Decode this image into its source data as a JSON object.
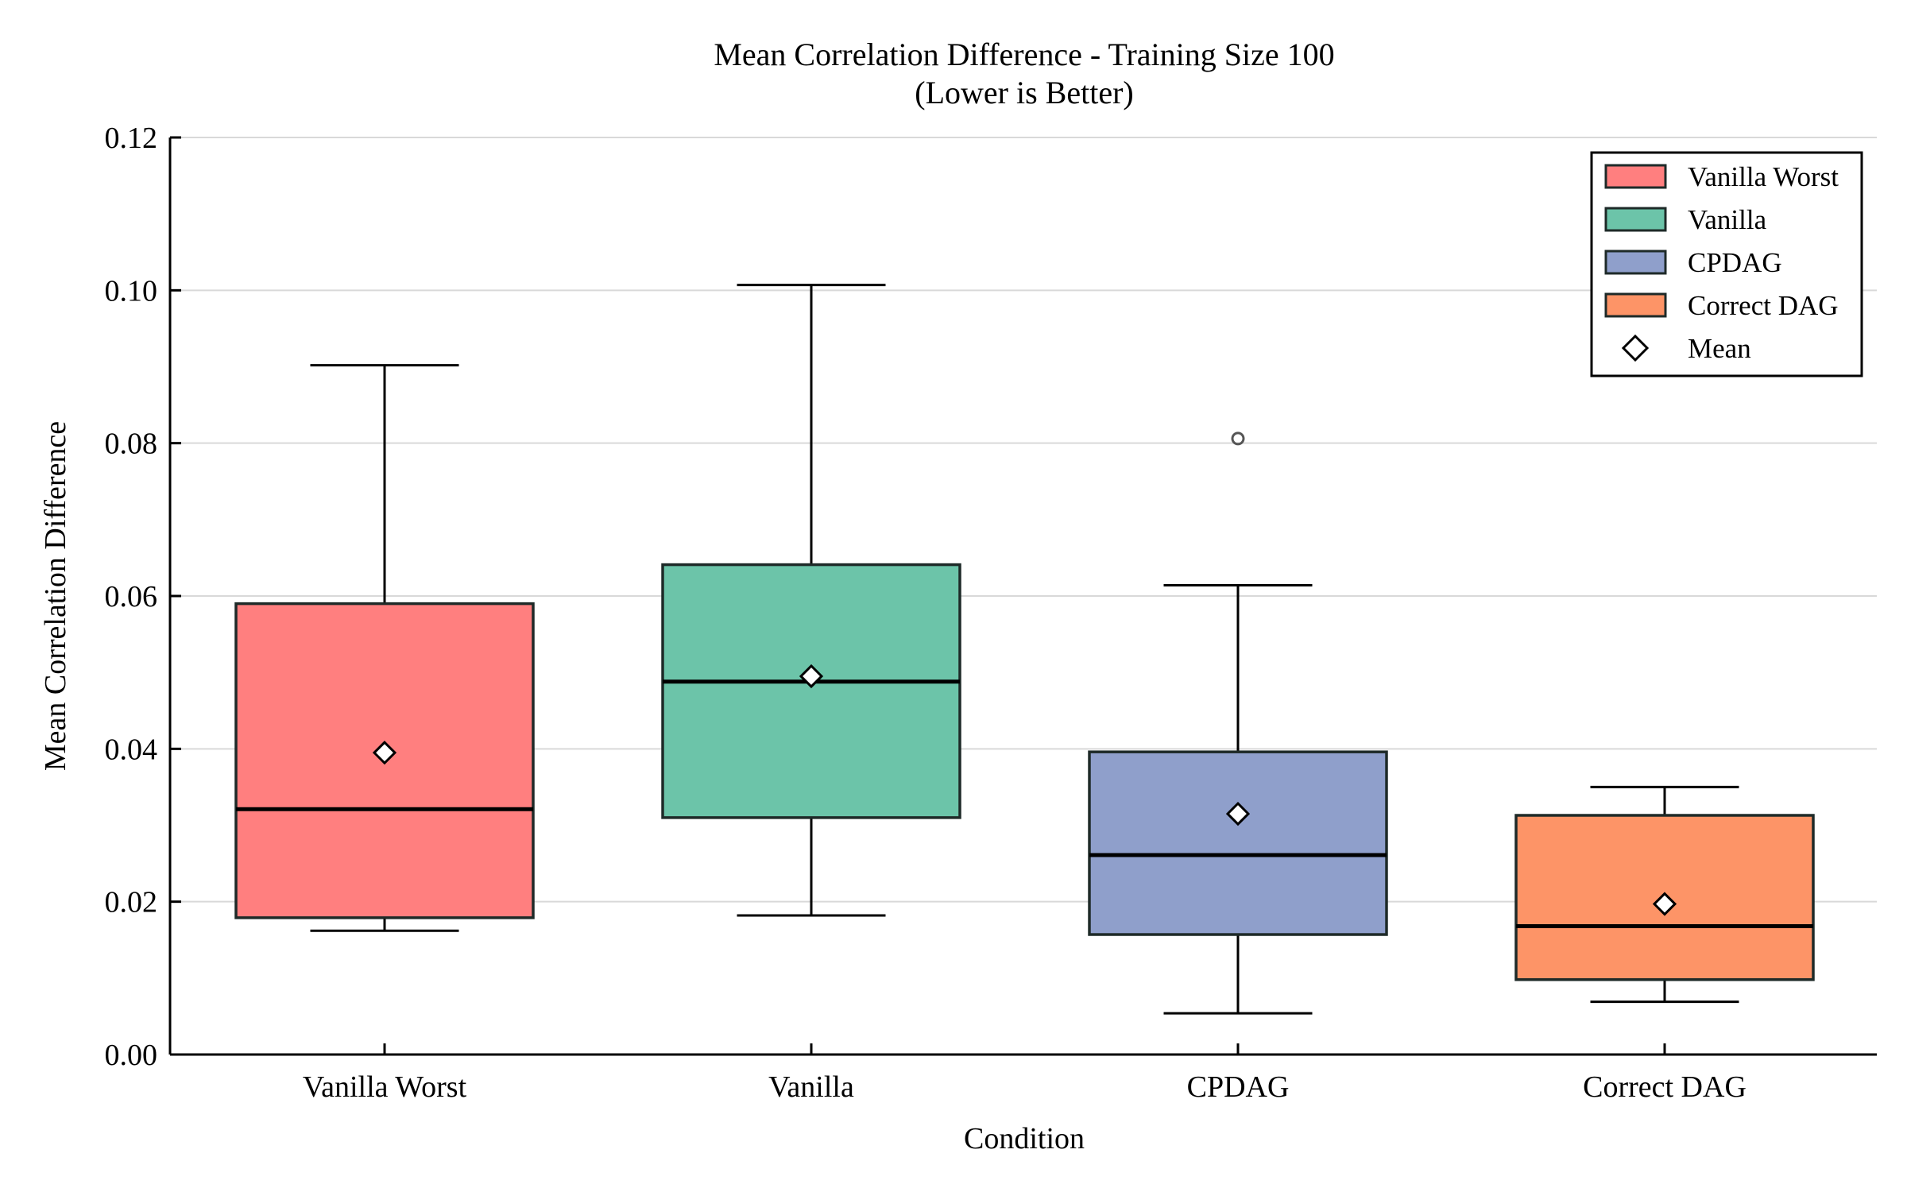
{
  "chart_data": {
    "type": "box",
    "title": "Mean Correlation Difference - Training Size 100",
    "subtitle": "(Lower is Better)",
    "xlabel": "Condition",
    "ylabel": "Mean Correlation Difference",
    "ylim": [
      0,
      0.12
    ],
    "yticks": [
      "0.00",
      "0.02",
      "0.04",
      "0.06",
      "0.08",
      "0.10",
      "0.12"
    ],
    "grid": "horizontal",
    "legend_position": "top-right",
    "categories": [
      "Vanilla Worst",
      "Vanilla",
      "CPDAG",
      "Correct DAG"
    ],
    "series": [
      {
        "name": "Vanilla Worst",
        "color": "#ff7f7f",
        "whisker_low": 0.0162,
        "q1": 0.0179,
        "median": 0.0321,
        "q3": 0.059,
        "whisker_high": 0.0902,
        "mean": 0.0395,
        "outliers": []
      },
      {
        "name": "Vanilla",
        "color": "#6cc4a9",
        "whisker_low": 0.0182,
        "q1": 0.031,
        "median": 0.0488,
        "q3": 0.0641,
        "whisker_high": 0.1007,
        "mean": 0.0495,
        "outliers": []
      },
      {
        "name": "CPDAG",
        "color": "#8f9fcb",
        "whisker_low": 0.0054,
        "q1": 0.0157,
        "median": 0.0261,
        "q3": 0.0396,
        "whisker_high": 0.0614,
        "mean": 0.0315,
        "outliers": [
          0.0806
        ]
      },
      {
        "name": "Correct DAG",
        "color": "#fd9467",
        "whisker_low": 0.0069,
        "q1": 0.0098,
        "median": 0.0168,
        "q3": 0.0313,
        "whisker_high": 0.035,
        "mean": 0.0197,
        "outliers": []
      }
    ],
    "legend": [
      "Vanilla Worst",
      "Vanilla",
      "CPDAG",
      "Correct DAG",
      "Mean"
    ]
  }
}
